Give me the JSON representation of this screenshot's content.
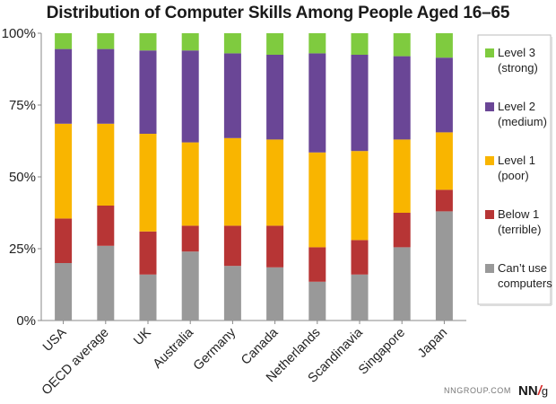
{
  "chart_data": {
    "type": "bar",
    "stacked": true,
    "title": "Distribution of Computer Skills Among People Aged 16–65",
    "xlabel": "",
    "ylabel": "",
    "ylim": [
      0,
      100
    ],
    "yticks": [
      "0%",
      "25%",
      "50%",
      "75%",
      "100%"
    ],
    "categories": [
      "USA",
      "OECD average",
      "UK",
      "Australia",
      "Germany",
      "Canada",
      "Netherlands",
      "Scandinavia",
      "Singapore",
      "Japan"
    ],
    "series": [
      {
        "name": "Can’t use computers",
        "legend_lines": [
          "Can’t use",
          "computers"
        ],
        "color": "#999999",
        "values": [
          20,
          26,
          16,
          24,
          19,
          18.5,
          13.5,
          16,
          25.5,
          38
        ]
      },
      {
        "name": "Below 1 (terrible)",
        "legend_lines": [
          "Below 1",
          "(terrible)"
        ],
        "color": "#b73535",
        "values": [
          15.5,
          14,
          15,
          9,
          14,
          14.5,
          12,
          12,
          12,
          7.5
        ]
      },
      {
        "name": "Level 1 (poor)",
        "legend_lines": [
          "Level 1",
          "(poor)"
        ],
        "color": "#f9b500",
        "values": [
          33,
          28.5,
          34,
          29,
          30.5,
          30,
          33,
          31,
          25.5,
          20
        ]
      },
      {
        "name": "Level 2 (medium)",
        "legend_lines": [
          "Level 2",
          "(medium)"
        ],
        "color": "#6a4696",
        "values": [
          26,
          26,
          29,
          32,
          29.5,
          29.5,
          34.5,
          33.5,
          29,
          26
        ]
      },
      {
        "name": "Level 3 (strong)",
        "legend_lines": [
          "Level 3",
          "(strong)"
        ],
        "color": "#7fcb3f",
        "values": [
          5.5,
          5.5,
          6,
          6,
          7,
          7.5,
          7,
          7.5,
          8,
          8.5
        ]
      }
    ],
    "legend_position": "right",
    "grid": false
  },
  "footer": {
    "url": "NNGROUP.COM",
    "logo": "NN/g"
  }
}
